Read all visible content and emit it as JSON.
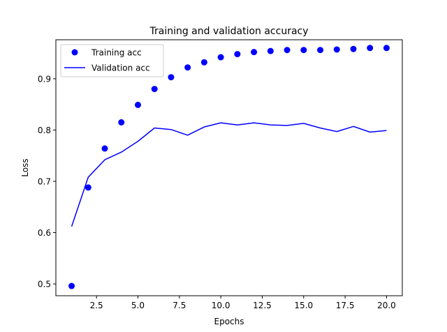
{
  "chart_data": {
    "type": "line",
    "title": "Training and validation accuracy",
    "xlabel": "Epochs",
    "ylabel": "Loss",
    "xlim": [
      0.05,
      20.95
    ],
    "ylim": [
      0.477,
      0.976
    ],
    "x_ticks": [
      2.5,
      5.0,
      7.5,
      10.0,
      12.5,
      15.0,
      17.5,
      20.0
    ],
    "x_tick_labels": [
      "2.5",
      "5.0",
      "7.5",
      "10.0",
      "12.5",
      "15.0",
      "17.5",
      "20.0"
    ],
    "y_ticks": [
      0.5,
      0.6,
      0.7,
      0.8,
      0.9
    ],
    "y_tick_labels": [
      "0.5",
      "0.6",
      "0.7",
      "0.8",
      "0.9"
    ],
    "legend_position": "top-left",
    "x": [
      1,
      2,
      3,
      4,
      5,
      6,
      7,
      8,
      9,
      10,
      11,
      12,
      13,
      14,
      15,
      16,
      17,
      18,
      19,
      20
    ],
    "series": [
      {
        "name": "Training acc",
        "style": "markers",
        "color": "#0000ff",
        "values": [
          0.496,
          0.688,
          0.764,
          0.815,
          0.849,
          0.88,
          0.903,
          0.922,
          0.932,
          0.942,
          0.948,
          0.952,
          0.954,
          0.956,
          0.956,
          0.956,
          0.957,
          0.958,
          0.96,
          0.96
        ]
      },
      {
        "name": "Validation acc",
        "style": "line",
        "color": "#0000ff",
        "values": [
          0.612,
          0.708,
          0.742,
          0.757,
          0.778,
          0.804,
          0.801,
          0.79,
          0.806,
          0.814,
          0.81,
          0.814,
          0.81,
          0.809,
          0.813,
          0.804,
          0.797,
          0.807,
          0.796,
          0.799
        ]
      }
    ]
  }
}
